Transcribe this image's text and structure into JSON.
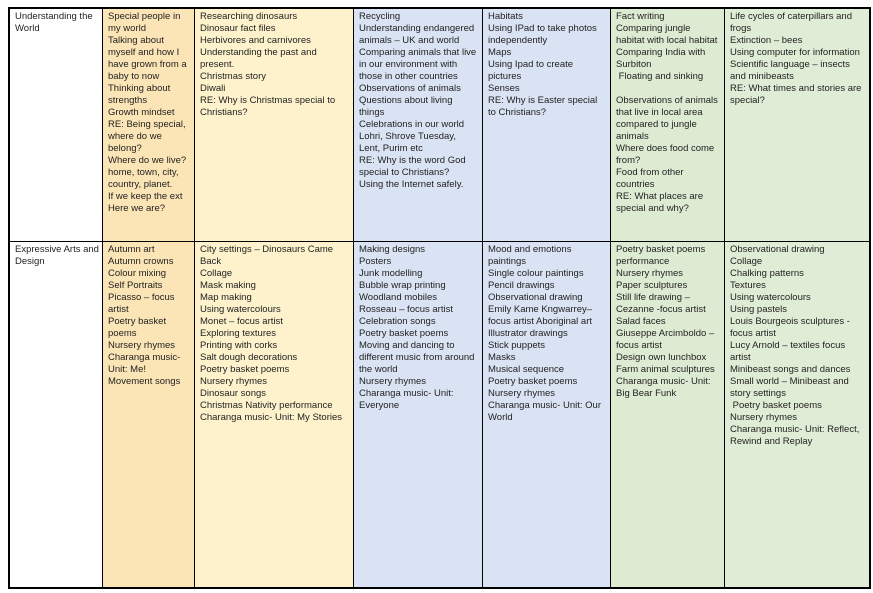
{
  "colors": {
    "label_bg": "#ffffff",
    "col1_bg": "#fbe5b6",
    "col2_bg": "#fdf2cc",
    "col3_bg": "#dae3f3",
    "col4_bg": "#dae3f3",
    "col5_bg": "#deebd3",
    "col6_bg": "#e0edd6",
    "border": "#000000",
    "text": "#1f1f1f"
  },
  "table": {
    "rows": [
      {
        "label": "Understanding the World",
        "cells": [
          [
            "Special people in my world",
            "Talking about myself and how I have grown from a baby to now",
            "Thinking about strengths",
            "Growth mindset",
            "RE: Being special, where do we belong?",
            "Where do we live? home, town, city, country, planet.",
            "If we keep the ext Here we are?"
          ],
          [
            "Researching dinosaurs",
            "Dinosaur fact files",
            "Herbivores and carnivores",
            "Understanding the past and present.",
            "Christmas story",
            "Diwali",
            "RE: Why is Christmas special to Christians?"
          ],
          [
            "Recycling",
            "Understanding endangered animals – UK and world",
            "Comparing animals that live in our environment with those in other countries",
            "Observations of animals",
            "Questions about living things",
            "Celebrations in our world",
            "Lohri, Shrove Tuesday, Lent, Purim etc",
            "RE: Why is the word God special to Christians?",
            "Using the Internet safely."
          ],
          [
            "Habitats",
            "Using IPad to take photos independently",
            "Maps",
            "Using Ipad to create pictures",
            "Senses",
            "RE: Why is Easter special to Christians?"
          ],
          [
            "Fact writing",
            "Comparing jungle habitat with local habitat",
            "Comparing India with Surbiton",
            " Floating and sinking",
            "",
            "Observations of animals that live in local area compared to jungle animals",
            "Where does food come from?",
            "Food from other countries",
            "RE: What places are special and why?"
          ],
          [
            "Life cycles of caterpillars and frogs",
            "Extinction – bees",
            "Using computer for information",
            "Scientific language – insects and minibeasts",
            "RE: What times and stories are special?"
          ]
        ]
      },
      {
        "label": "Expressive Arts and Design",
        "cells": [
          [
            "Autumn art",
            "Autumn crowns",
            "Colour mixing",
            "Self Portraits",
            "Picasso – focus artist",
            "Poetry basket poems",
            "Nursery rhymes",
            "Charanga music- Unit: Me!",
            "Movement songs"
          ],
          [
            "City settings – Dinosaurs Came Back",
            "Collage",
            "Mask making",
            "Map making",
            "Using watercolours",
            "Monet – focus artist",
            "Exploring textures",
            "Printing with corks",
            "Salt dough decorations",
            "Poetry basket poems",
            "Nursery rhymes",
            "Dinosaur songs",
            "Christmas Nativity performance",
            "Charanga music- Unit: My Stories"
          ],
          [
            "Making designs",
            "Posters",
            "Junk modelling",
            "Bubble wrap printing",
            "Woodland mobiles",
            "Rosseau – focus artist",
            "Celebration songs",
            "Poetry basket poems",
            "Moving and dancing to different music from around the world",
            "Nursery rhymes",
            "Charanga music- Unit: Everyone"
          ],
          [
            "Mood and emotions paintings",
            "Single colour paintings",
            "Pencil drawings",
            "Observational drawing",
            "Emily Kame Kngwarrey–focus artist Aboriginal art",
            "Illustrator drawings",
            "Stick puppets",
            "Masks",
            "Musical sequence",
            "Poetry basket poems",
            "Nursery rhymes",
            "Charanga music- Unit: Our World"
          ],
          [
            "Poetry basket poems performance",
            "Nursery rhymes",
            "Paper sculptures",
            "Still life drawing – Cezanne -focus artist",
            "Salad faces",
            "Giuseppe Arcimboldo – focus artist",
            "Design own lunchbox",
            "Farm animal sculptures",
            "Charanga music- Unit: Big Bear Funk"
          ],
          [
            "Observational drawing",
            "Collage",
            "Chalking patterns",
            "Textures",
            "Using watercolours",
            "Using pastels",
            "Louis Bourgeois sculptures - focus artist",
            "Lucy Arnold – textiles focus artist",
            "Minibeast songs and dances",
            "Small world – Minibeast and story settings",
            " Poetry basket poems",
            "Nursery rhymes",
            "Charanga music- Unit: Reflect, Rewind and Replay"
          ]
        ]
      }
    ]
  }
}
